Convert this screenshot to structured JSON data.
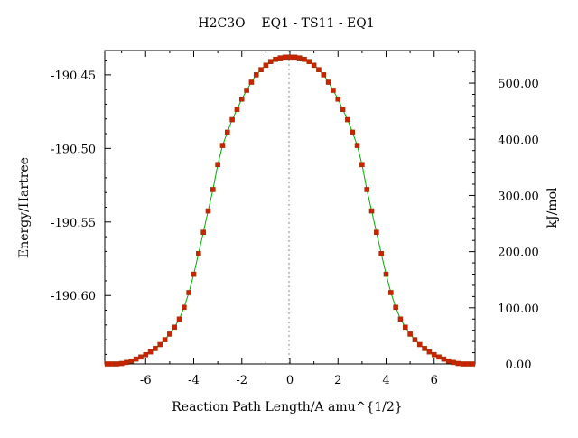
{
  "chart_data": {
    "type": "line",
    "title": "H2C3O    EQ1 - TS11 - EQ1",
    "xlabel": "Reaction Path Length/A amu^{1/2}",
    "ylabel_left": "Energy/Hartree",
    "ylabel_right": "kJ/mol",
    "xlim": [
      -7.7,
      7.7
    ],
    "ylim_left": [
      -190.6465,
      -190.4335
    ],
    "ylim_right": [
      0,
      558
    ],
    "x_ticks": [
      -6,
      -4,
      -2,
      0,
      2,
      4,
      6
    ],
    "x_tick_labels": [
      "-6",
      "-4",
      "-2",
      "0",
      "2",
      "4",
      "6"
    ],
    "y_left_ticks": [
      -190.45,
      -190.5,
      -190.55,
      -190.6
    ],
    "y_left_tick_labels": [
      "-190.45",
      "-190.50",
      "-190.55",
      "-190.60"
    ],
    "y_right_ticks": [
      0,
      100,
      200,
      300,
      400,
      500
    ],
    "y_right_tick_labels": [
      "0.00",
      "100.00",
      "200.00",
      "300.00",
      "400.00",
      "500.00"
    ],
    "ts_marker_x": 0,
    "colors": {
      "curve": "#00aa00",
      "points": "#cc2200",
      "point_outline": "#993300",
      "ts_line": "#888888"
    },
    "series": [
      {
        "x": [
          -7.6,
          -7.4,
          -7.2,
          -7.0,
          -6.8,
          -6.6,
          -6.4,
          -6.2,
          -6.0,
          -5.8,
          -5.6,
          -5.4,
          -5.2,
          -5.0,
          -4.8,
          -4.6,
          -4.4,
          -4.2,
          -4.0,
          -3.8,
          -3.6,
          -3.4,
          -3.2,
          -3.0,
          -2.8,
          -2.6,
          -2.4,
          -2.2,
          -2.0,
          -1.8,
          -1.6,
          -1.4,
          -1.2,
          -1.0,
          -0.8,
          -0.6,
          -0.4,
          -0.2,
          0.0,
          0.2,
          0.4,
          0.6,
          0.8,
          1.0,
          1.2,
          1.4,
          1.6,
          1.8,
          2.0,
          2.2,
          2.4,
          2.6,
          2.8,
          3.0,
          3.2,
          3.4,
          3.6,
          3.8,
          4.0,
          4.2,
          4.4,
          4.6,
          4.8,
          5.0,
          5.2,
          5.4,
          5.6,
          5.8,
          6.0,
          6.2,
          6.4,
          6.6,
          6.8,
          7.0,
          7.2,
          7.4,
          7.6
        ],
        "y": [
          -190.6465,
          -190.6465,
          -190.6465,
          -190.6462,
          -190.6455,
          -190.6445,
          -190.6432,
          -190.6418,
          -190.6402,
          -190.6383,
          -190.636,
          -190.6333,
          -190.63,
          -190.6262,
          -190.6215,
          -190.616,
          -190.608,
          -190.598,
          -190.5855,
          -190.5715,
          -190.557,
          -190.5425,
          -190.528,
          -190.511,
          -190.498,
          -190.489,
          -190.4805,
          -190.4735,
          -190.4665,
          -190.4605,
          -190.455,
          -190.45,
          -190.4465,
          -190.4435,
          -190.441,
          -190.4395,
          -190.4385,
          -190.438,
          -190.438,
          -190.438,
          -190.4385,
          -190.4395,
          -190.441,
          -190.4435,
          -190.4465,
          -190.45,
          -190.455,
          -190.4605,
          -190.4665,
          -190.4735,
          -190.4805,
          -190.489,
          -190.498,
          -190.511,
          -190.528,
          -190.5425,
          -190.557,
          -190.5715,
          -190.5855,
          -190.598,
          -190.608,
          -190.616,
          -190.6215,
          -190.6262,
          -190.63,
          -190.6333,
          -190.636,
          -190.6383,
          -190.6402,
          -190.6418,
          -190.6432,
          -190.6445,
          -190.6455,
          -190.6462,
          -190.6465,
          -190.6465,
          -190.6465
        ]
      }
    ]
  }
}
